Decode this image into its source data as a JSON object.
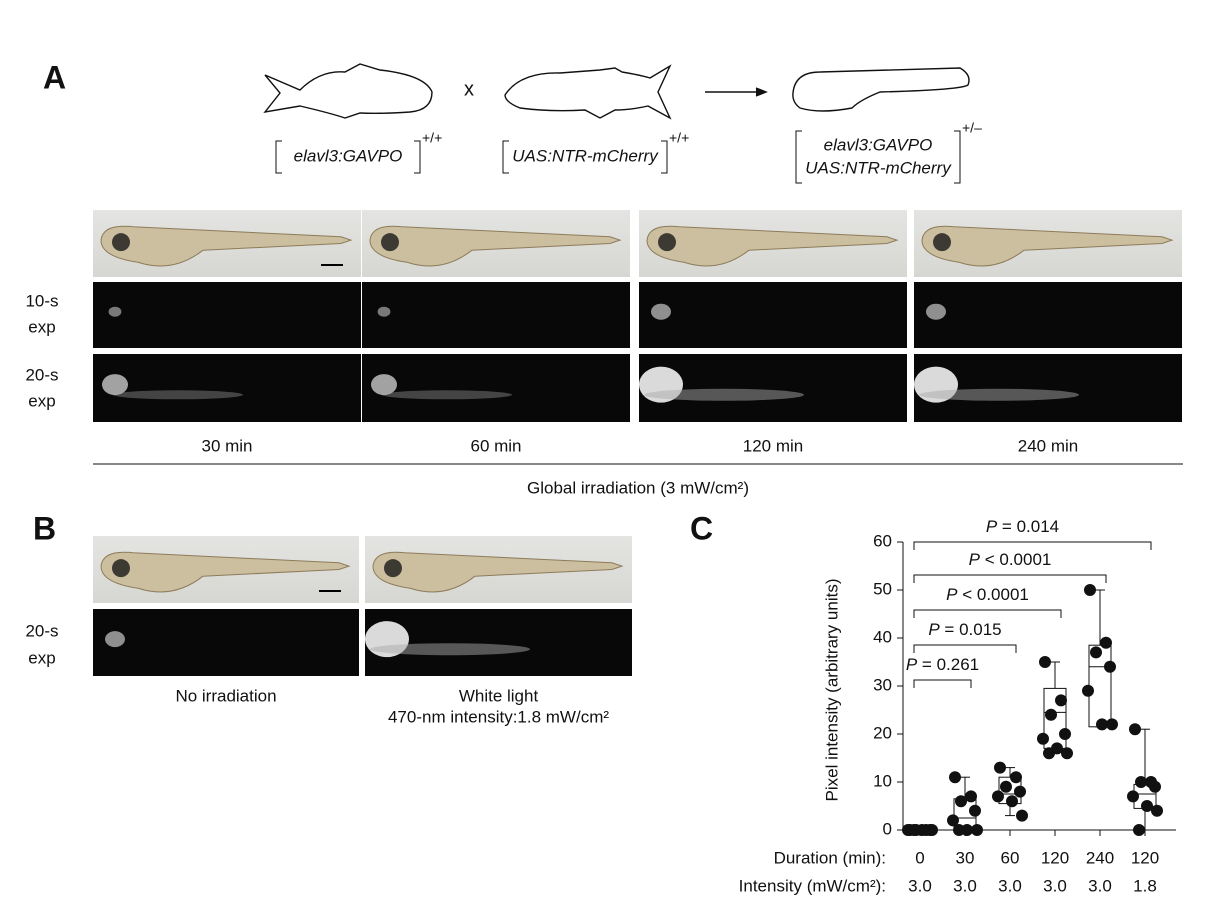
{
  "panel_a": {
    "letter": "A",
    "cross": "x",
    "genotypes": [
      {
        "lines": [
          "elavl3:GAVPO"
        ],
        "superscript": "+/+"
      },
      {
        "lines": [
          "UAS:NTR-mCherry"
        ],
        "superscript": "+/+"
      },
      {
        "lines": [
          "elavl3:GAVPO",
          "UAS:NTR-mCherry"
        ],
        "superscript": "+/–"
      }
    ],
    "row_labels": [
      [
        "10-s",
        "exp"
      ],
      [
        "20-s",
        "exp"
      ]
    ],
    "times": [
      "30 min",
      "60 min",
      "120 min",
      "240 min"
    ],
    "irradiation": "Global irradiation (3 mW/cm²)"
  },
  "panel_b": {
    "letter": "B",
    "row_label": [
      "20-s",
      "exp"
    ],
    "conditions": [
      [
        "No irradiation"
      ],
      [
        "White light",
        "470-nm intensity:1.8 mW/cm²"
      ]
    ]
  },
  "chart_data": {
    "type": "box",
    "label": "C",
    "ylabel": "Pixel intensity (arbitrary units)",
    "ylim": [
      0,
      60
    ],
    "yticks": [
      0,
      10,
      20,
      30,
      40,
      50,
      60
    ],
    "category_row_label": "Duration (min):",
    "categories": [
      "0",
      "30",
      "60",
      "120",
      "240",
      "120"
    ],
    "intensity_row_label": "Intensity (mW/cm²):",
    "intensities": [
      "3.0",
      "3.0",
      "3.0",
      "3.0",
      "3.0",
      "1.8"
    ],
    "groups": [
      {
        "min": 0,
        "q1": 0,
        "median": 0,
        "q3": 0,
        "max": 0,
        "points": [
          0,
          0,
          0,
          0,
          0,
          0,
          0,
          0
        ]
      },
      {
        "min": 0,
        "q1": 0,
        "median": 2.5,
        "q3": 6.5,
        "max": 11,
        "points": [
          11,
          7,
          6,
          4,
          2,
          0,
          0,
          0
        ]
      },
      {
        "min": 3,
        "q1": 5.5,
        "median": 7.5,
        "q3": 11,
        "max": 13,
        "points": [
          13,
          11,
          9,
          8,
          7,
          6,
          3
        ]
      },
      {
        "min": 16,
        "q1": 17,
        "median": 24.5,
        "q3": 29.5,
        "max": 35,
        "points": [
          35,
          27,
          24,
          20,
          19,
          17,
          16,
          16
        ]
      },
      {
        "min": 21.5,
        "q1": 21.5,
        "median": 34,
        "q3": 38.5,
        "max": 50,
        "points": [
          50,
          39,
          37,
          34,
          29,
          22,
          22
        ]
      },
      {
        "min": 0,
        "q1": 4.5,
        "median": 7.5,
        "q3": 9.5,
        "max": 21,
        "points": [
          21,
          10,
          10,
          9,
          7,
          5,
          4,
          0
        ]
      }
    ],
    "significance": [
      "P = 0.261",
      "P = 0.015",
      "P < 0.0001",
      "P < 0.0001",
      "P = 0.014"
    ]
  }
}
